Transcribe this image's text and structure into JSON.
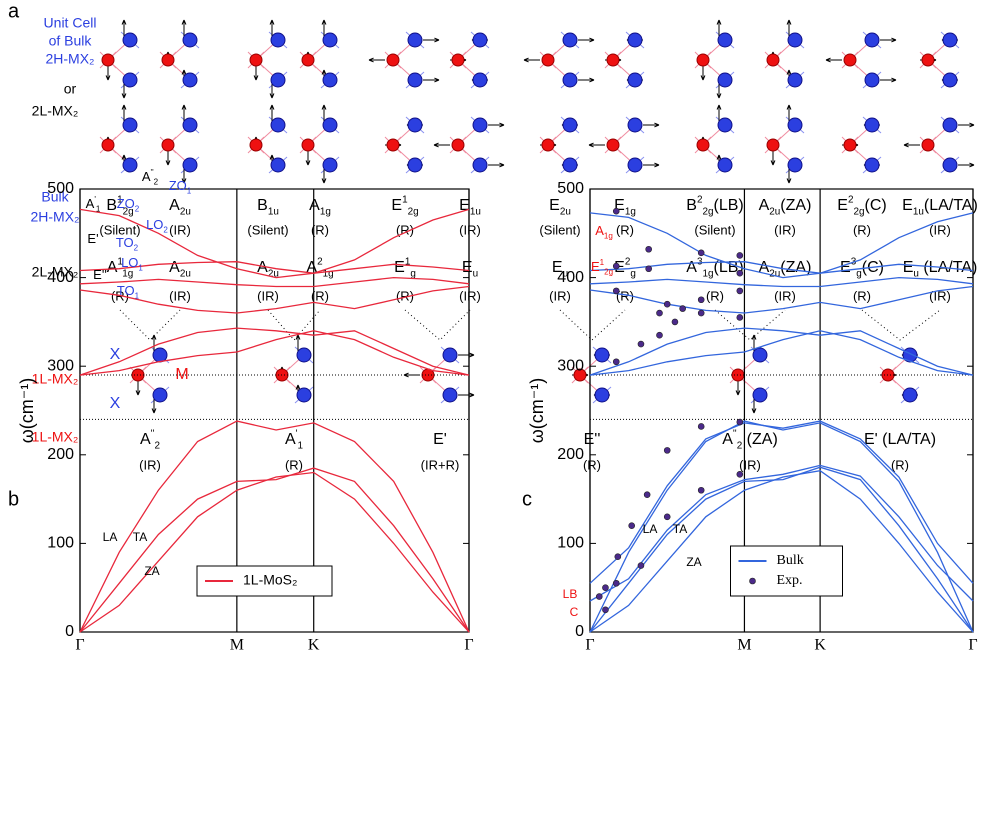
{
  "panel_labels": [
    "a",
    "b",
    "c"
  ],
  "diagram": {
    "row_labels": [
      "Unit Cell",
      "of Bulk",
      "2H-MX₂",
      "or",
      "2L-MX₂",
      "Bulk",
      "2H-MX₂",
      "2L-MX₂",
      "1L-MX₂",
      "1L-MX₂"
    ],
    "atom_labels": [
      "X",
      "M",
      "X"
    ],
    "bulk_modes": [
      {
        "mode": {
          "base": "B",
          "sup": "1",
          "sub": "2g"
        },
        "activity": "(Silent)"
      },
      {
        "mode": {
          "base": "A",
          "sub": "2u"
        },
        "activity": "(IR)"
      },
      {
        "mode": {
          "base": "B",
          "sub": "1u"
        },
        "activity": "(Silent)"
      },
      {
        "mode": {
          "base": "A",
          "sub": "1g"
        },
        "activity": "(R)"
      },
      {
        "mode": {
          "base": "E",
          "sup": "1",
          "sub": "2g"
        },
        "activity": "(R)"
      },
      {
        "mode": {
          "base": "E",
          "sub": "1u"
        },
        "activity": "(IR)"
      },
      {
        "mode": {
          "base": "E",
          "sub": "2u"
        },
        "activity": "(Silent)"
      },
      {
        "mode": {
          "base": "E",
          "sub": "1g"
        },
        "activity": "(R)"
      },
      {
        "mode": {
          "base": "B",
          "sup": "2",
          "sub": "2g",
          "tail": "(LB)"
        },
        "activity": "(Silent)"
      },
      {
        "mode": {
          "base": "A",
          "sub": "2u",
          "tail": "(ZA)"
        },
        "activity": "(IR)"
      },
      {
        "mode": {
          "base": "E",
          "sup": "2",
          "sub": "2g",
          "tail": "(C)"
        },
        "activity": "(R)"
      },
      {
        "mode": {
          "base": "E",
          "sub": "1u",
          "tail": "(LA/TA)"
        },
        "activity": "(IR)"
      }
    ],
    "bilayer_modes": [
      {
        "mode": {
          "base": "A",
          "sup": "1",
          "sub": "1g"
        },
        "activity": "(R)"
      },
      {
        "mode": {
          "base": "A",
          "sub": "2u"
        },
        "activity": "(IR)"
      },
      {
        "mode": {
          "base": "A",
          "sub": "2u"
        },
        "activity": "(IR)"
      },
      {
        "mode": {
          "base": "A",
          "sup": "2",
          "sub": "1g"
        },
        "activity": "(R)"
      },
      {
        "mode": {
          "base": "E",
          "sup": "1",
          "sub": "g"
        },
        "activity": "(R)"
      },
      {
        "mode": {
          "base": "E",
          "sub": "u"
        },
        "activity": "(IR)"
      },
      {
        "mode": {
          "base": "E",
          "sub": "u"
        },
        "activity": "(IR)"
      },
      {
        "mode": {
          "base": "E",
          "sup": "2",
          "sub": "g"
        },
        "activity": "(R)"
      },
      {
        "mode": {
          "base": "A",
          "sup": "3",
          "sub": "1g",
          "tail": "(LB)"
        },
        "activity": "(R)"
      },
      {
        "mode": {
          "base": "A",
          "sub": "2u",
          "tail": "(ZA)"
        },
        "activity": "(IR)"
      },
      {
        "mode": {
          "base": "E",
          "sup": "3",
          "sub": "g",
          "tail": "(C)"
        },
        "activity": "(R)"
      },
      {
        "mode": {
          "base": "E",
          "sub": "u",
          "tail": " (LA/TA)"
        },
        "activity": "(IR)"
      }
    ],
    "monolayer_modes": [
      {
        "mode": {
          "base": "A",
          "sup": "''",
          "sub": "2"
        },
        "activity": "(IR)"
      },
      {
        "mode": {
          "base": "A",
          "sup": "'",
          "sub": "1"
        },
        "activity": "(R)"
      },
      {
        "mode": {
          "base": "E'"
        },
        "activity": "(IR+R)"
      },
      {
        "mode": {
          "base": "E''"
        },
        "activity": "(R)"
      },
      {
        "mode": {
          "base": "A",
          "sup": "''",
          "sub": "2",
          "tail": " (ZA)"
        },
        "activity": "(IR)"
      },
      {
        "mode": {
          "base": "E'",
          "tail": " (LA/TA)"
        },
        "activity": "(R)"
      }
    ]
  },
  "chart_data": [
    {
      "type": "line",
      "ylabel": "ω(cm⁻¹)",
      "x": [
        0,
        0.25,
        0.5,
        0.75,
        1,
        1.25,
        1.49,
        1.75,
        2,
        2.25,
        2.48
      ],
      "xlim": [
        0,
        2.48
      ],
      "xticks": [
        {
          "value": 0,
          "label": "Γ"
        },
        {
          "value": 1,
          "label": "M"
        },
        {
          "value": 1.49,
          "label": "K"
        },
        {
          "value": 2.48,
          "label": "Γ"
        }
      ],
      "ylim": [
        0,
        500
      ],
      "yticks": [
        0,
        100,
        200,
        300,
        400,
        500
      ],
      "hlines": [
        290,
        240
      ],
      "series": [
        {
          "name": "1L-MoS₂",
          "color": "#e8283c",
          "values": [
            0,
            30,
            80,
            130,
            160,
            175,
            180,
            150,
            100,
            45,
            0
          ]
        },
        {
          "color": "#e8283c",
          "values": [
            0,
            55,
            110,
            150,
            170,
            172,
            185,
            170,
            120,
            60,
            0
          ]
        },
        {
          "color": "#e8283c",
          "values": [
            0,
            90,
            160,
            215,
            238,
            228,
            236,
            215,
            170,
            90,
            0
          ]
        },
        {
          "color": "#e8283c",
          "values": [
            290,
            295,
            305,
            312,
            316,
            330,
            340,
            330,
            310,
            295,
            290
          ]
        },
        {
          "color": "#e8283c",
          "values": [
            290,
            305,
            325,
            338,
            343,
            340,
            335,
            340,
            320,
            300,
            290
          ]
        },
        {
          "color": "#e8283c",
          "values": [
            386,
            380,
            370,
            363,
            360,
            365,
            372,
            365,
            375,
            385,
            390
          ]
        },
        {
          "color": "#e8283c",
          "values": [
            393,
            395,
            398,
            395,
            392,
            390,
            390,
            395,
            400,
            398,
            393
          ]
        },
        {
          "color": "#e8283c",
          "values": [
            408,
            410,
            415,
            417,
            418,
            410,
            405,
            410,
            415,
            412,
            408
          ]
        },
        {
          "color": "#e8283c",
          "values": [
            477,
            470,
            450,
            425,
            410,
            400,
            405,
            420,
            445,
            465,
            477
          ]
        }
      ],
      "legend": "lower-center",
      "annotations": [
        {
          "base": "A",
          "sup": "''",
          "sub": "2"
        },
        {
          "base": "ZO",
          "sub": "1"
        },
        {
          "base": "A",
          "sup": "'",
          "sub": "1"
        },
        {
          "base": "ZO",
          "sub": "2"
        },
        {
          "base": "LO",
          "sub": "2"
        },
        {
          "base": "E'"
        },
        {
          "base": "TO",
          "sub": "2"
        },
        {
          "base": "LO",
          "sub": "1"
        },
        {
          "base": "E''"
        },
        {
          "base": "TO",
          "sub": "1"
        },
        {
          "base": "LA"
        },
        {
          "base": "TA"
        },
        {
          "base": "ZA"
        }
      ]
    },
    {
      "type": "line",
      "ylabel": "ω(cm⁻¹)",
      "x": [
        0,
        0.25,
        0.5,
        0.75,
        1,
        1.25,
        1.49,
        1.75,
        2,
        2.25,
        2.48
      ],
      "xlim": [
        0,
        2.48
      ],
      "xticks": [
        {
          "value": 0,
          "label": "Γ"
        },
        {
          "value": 1,
          "label": "M"
        },
        {
          "value": 1.49,
          "label": "K"
        },
        {
          "value": 2.48,
          "label": "Γ"
        }
      ],
      "ylim": [
        0,
        500
      ],
      "yticks": [
        0,
        100,
        200,
        300,
        400,
        500
      ],
      "hlines": [
        290,
        240
      ],
      "series": [
        {
          "name": "Bulk",
          "color": "#3366dd",
          "values": [
            0,
            30,
            80,
            130,
            160,
            175,
            182,
            150,
            100,
            45,
            0
          ]
        },
        {
          "color": "#3366dd",
          "values": [
            0,
            55,
            110,
            150,
            170,
            172,
            186,
            172,
            120,
            60,
            0
          ]
        },
        {
          "color": "#3366dd",
          "values": [
            0,
            90,
            160,
            215,
            238,
            228,
            236,
            215,
            170,
            90,
            0
          ]
        },
        {
          "color": "#3366dd",
          "values": [
            35,
            60,
            115,
            155,
            172,
            178,
            188,
            176,
            130,
            75,
            35
          ]
        },
        {
          "color": "#3366dd",
          "values": [
            55,
            95,
            165,
            218,
            236,
            230,
            238,
            218,
            175,
            100,
            55
          ]
        },
        {
          "color": "#3366dd",
          "values": [
            290,
            295,
            305,
            312,
            316,
            330,
            340,
            330,
            310,
            295,
            290
          ]
        },
        {
          "color": "#3366dd",
          "values": [
            290,
            305,
            325,
            338,
            343,
            340,
            335,
            340,
            320,
            300,
            290
          ]
        },
        {
          "color": "#3366dd",
          "values": [
            386,
            380,
            370,
            363,
            360,
            365,
            372,
            365,
            375,
            385,
            390
          ]
        },
        {
          "color": "#3366dd",
          "values": [
            393,
            395,
            398,
            395,
            392,
            390,
            390,
            395,
            400,
            398,
            393
          ]
        },
        {
          "color": "#3366dd",
          "values": [
            408,
            410,
            415,
            417,
            418,
            410,
            405,
            410,
            415,
            412,
            408
          ]
        },
        {
          "color": "#3366dd",
          "values": [
            473,
            468,
            450,
            425,
            410,
            400,
            405,
            420,
            445,
            463,
            473
          ]
        },
        {
          "name": "Exp.",
          "type": "scatter",
          "color": "#4b2a8a",
          "x": [
            0.17,
            0.17,
            0.17,
            0.17,
            0.38,
            0.38,
            0.45,
            0.5,
            0.6,
            0.72,
            0.72,
            0.72,
            0.97,
            0.97,
            0.97,
            0.97,
            0.33,
            0.45,
            0.55,
            0.72,
            0.97,
            0.97,
            0.72,
            0.5,
            0.37,
            0.27,
            0.18,
            0.1,
            0.06,
            0.1,
            0.17,
            0.33,
            0.5
          ],
          "values": [
            475,
            413,
            385,
            305,
            432,
            410,
            360,
            370,
            365,
            360,
            428,
            375,
            425,
            405,
            385,
            355,
            325,
            335,
            350,
            232,
            237,
            178,
            160,
            205,
            155,
            120,
            85,
            50,
            40,
            25,
            55,
            75,
            130
          ]
        }
      ],
      "legend": "lower-center",
      "annotations": [
        {
          "base": "A",
          "sub": "1g"
        },
        {
          "base": "E",
          "sup": "1",
          "sub": "2g"
        },
        {
          "base": "LA"
        },
        {
          "base": "TA"
        },
        {
          "base": "ZA"
        },
        {
          "base": "LB"
        },
        {
          "base": "C"
        }
      ]
    }
  ]
}
